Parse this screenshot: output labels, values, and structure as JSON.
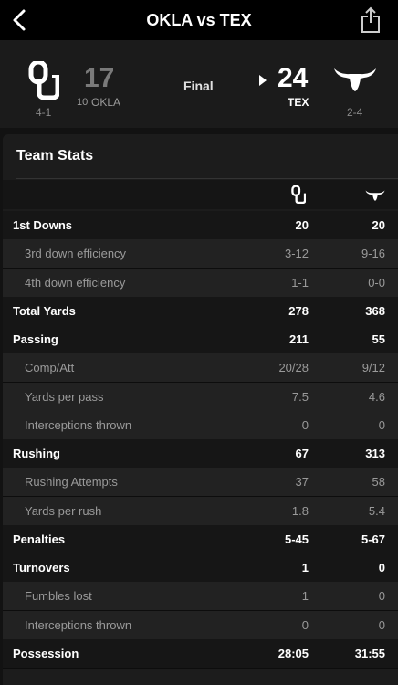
{
  "nav": {
    "title": "OKLA vs TEX"
  },
  "game": {
    "status": "Final",
    "home": {
      "score": "17",
      "rank": "10",
      "abbr": "OKLA",
      "record": "4-1"
    },
    "away": {
      "score": "24",
      "abbr": "TEX",
      "record": "2-4"
    }
  },
  "stats": {
    "title": "Team Stats",
    "rows": [
      {
        "label": "1st Downs",
        "v1": "20",
        "v2": "20",
        "type": "main"
      },
      {
        "label": "3rd down efficiency",
        "v1": "3-12",
        "v2": "9-16",
        "type": "sub"
      },
      {
        "label": "4th down efficiency",
        "v1": "1-1",
        "v2": "0-0",
        "type": "sub"
      },
      {
        "label": "Total Yards",
        "v1": "278",
        "v2": "368",
        "type": "main"
      },
      {
        "label": "Passing",
        "v1": "211",
        "v2": "55",
        "type": "main"
      },
      {
        "label": "Comp/Att",
        "v1": "20/28",
        "v2": "9/12",
        "type": "sub"
      },
      {
        "label": "Yards per pass",
        "v1": "7.5",
        "v2": "4.6",
        "type": "sub"
      },
      {
        "label": "Interceptions thrown",
        "v1": "0",
        "v2": "0",
        "type": "sub"
      },
      {
        "label": "Rushing",
        "v1": "67",
        "v2": "313",
        "type": "main"
      },
      {
        "label": "Rushing Attempts",
        "v1": "37",
        "v2": "58",
        "type": "sub"
      },
      {
        "label": "Yards per rush",
        "v1": "1.8",
        "v2": "5.4",
        "type": "sub"
      },
      {
        "label": "Penalties",
        "v1": "5-45",
        "v2": "5-67",
        "type": "main"
      },
      {
        "label": "Turnovers",
        "v1": "1",
        "v2": "0",
        "type": "main"
      },
      {
        "label": "Fumbles lost",
        "v1": "1",
        "v2": "0",
        "type": "sub"
      },
      {
        "label": "Interceptions thrown",
        "v1": "0",
        "v2": "0",
        "type": "sub"
      },
      {
        "label": "Possession",
        "v1": "28:05",
        "v2": "31:55",
        "type": "main"
      }
    ]
  },
  "icons": {
    "back": "chevron-left-icon",
    "share": "share-icon",
    "home_logo": "oklahoma-logo-icon",
    "away_logo": "longhorn-logo-icon",
    "winner": "winner-triangle-icon"
  }
}
